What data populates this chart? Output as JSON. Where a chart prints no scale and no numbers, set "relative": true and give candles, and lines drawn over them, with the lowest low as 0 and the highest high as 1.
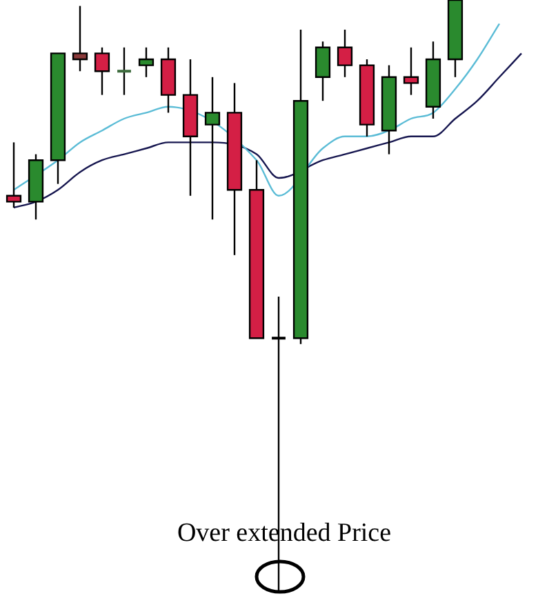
{
  "chart_data": {
    "type": "candlestick",
    "relative": true,
    "categories": [
      null,
      null,
      null,
      null,
      null,
      null,
      null,
      null,
      null,
      null,
      null,
      null,
      null,
      null,
      null,
      null,
      null,
      null,
      null,
      null,
      null,
      null,
      null,
      null
    ],
    "ohlc": [
      [
        0.67,
        0.76,
        0.65,
        0.66
      ],
      [
        0.66,
        0.74,
        0.63,
        0.73
      ],
      [
        0.73,
        0.91,
        0.69,
        0.91
      ],
      [
        0.91,
        0.99,
        0.88,
        0.9
      ],
      [
        0.91,
        0.92,
        0.84,
        0.88
      ],
      [
        0.88,
        0.92,
        0.84,
        0.88
      ],
      [
        0.89,
        0.92,
        0.87,
        0.9
      ],
      [
        0.9,
        0.92,
        0.81,
        0.84
      ],
      [
        0.84,
        0.9,
        0.67,
        0.77
      ],
      [
        0.79,
        0.87,
        0.63,
        0.81
      ],
      [
        0.81,
        0.86,
        0.57,
        0.68
      ],
      [
        0.68,
        0.73,
        0.43,
        0.43
      ],
      [
        0.43,
        0.5,
        0,
        0.43
      ],
      [
        0.43,
        0.95,
        0.42,
        0.83
      ],
      [
        0.87,
        0.93,
        0.83,
        0.92
      ],
      [
        0.92,
        0.95,
        0.87,
        0.89
      ],
      [
        0.89,
        0.9,
        0.77,
        0.79
      ],
      [
        0.78,
        0.89,
        0.74,
        0.87
      ],
      [
        0.87,
        0.92,
        0.84,
        0.86
      ],
      [
        0.82,
        0.93,
        0.8,
        0.9
      ],
      [
        0.9,
        1,
        0.87,
        1
      ],
      null,
      null,
      null
    ],
    "colors": [
      "#d41f45",
      "#2a8a2e",
      "#2a8a2e",
      "#8b3a3a",
      "#d41f45",
      "#3d6b3d",
      "#2a8a2e",
      "#d41f45",
      "#d41f45",
      "#2a8a2e",
      "#d41f45",
      "#d41f45",
      "#000000",
      "#2a8a2e",
      "#2a8a2e",
      "#d41f45",
      "#d41f45",
      "#2a8a2e",
      "#d41f45",
      "#2a8a2e",
      "#2a8a2e",
      null,
      null,
      null
    ],
    "series": [
      {
        "type": "line",
        "color": "#5bbcd6",
        "values": [
          0.68,
          null,
          0.73,
          0.76,
          0.78,
          0.8,
          0.81,
          0.82,
          null,
          null,
          null,
          0.73,
          0.67,
          null,
          0.75,
          0.77,
          0.77,
          0.78,
          0.8,
          0.81,
          0.85,
          0.9,
          0.96,
          null
        ]
      },
      {
        "type": "line",
        "color": "#16164f",
        "values": [
          0.65,
          0.66,
          0.68,
          0.71,
          0.73,
          0.74,
          0.75,
          0.76,
          0.76,
          0.76,
          null,
          0.74,
          0.7,
          null,
          0.73,
          0.74,
          0.75,
          0.76,
          0.77,
          0.77,
          0.8,
          0.83,
          0.87,
          0.91
        ]
      }
    ],
    "annotations": [
      "Over extended Price"
    ],
    "legend": false
  }
}
